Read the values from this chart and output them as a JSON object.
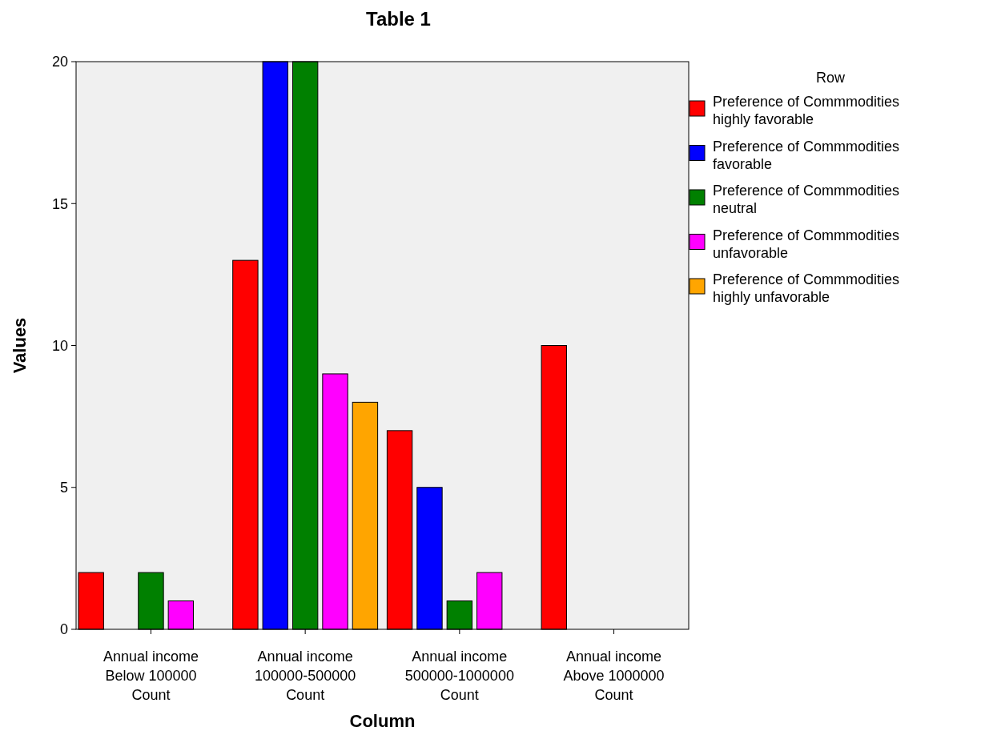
{
  "chart_data": {
    "type": "bar",
    "title": "Table 1",
    "xlabel": "Column",
    "ylabel": "Values",
    "legend_title": "Row",
    "legend": "right",
    "categories": [
      "Annual income\nBelow 100000\nCount",
      "Annual income\n100000-500000\nCount",
      "Annual income\n500000-1000000\nCount",
      "Annual income\nAbove 1000000\nCount"
    ],
    "series": [
      {
        "name": "Preference of Commmodities\nhighly favorable",
        "color": "#ff0000",
        "values": [
          2,
          13,
          7,
          10
        ]
      },
      {
        "name": "Preference of Commmodities\nfavorable",
        "color": "#0000ff",
        "values": [
          0,
          20,
          5,
          0
        ]
      },
      {
        "name": "Preference of Commmodities\nneutral",
        "color": "#008000",
        "values": [
          2,
          20,
          1,
          0
        ]
      },
      {
        "name": "Preference of Commmodities\nunfavorable",
        "color": "#ff00ff",
        "values": [
          1,
          9,
          2,
          0
        ]
      },
      {
        "name": "Preference of Commmodities\nhighly unfavorable",
        "color": "#ffa500",
        "values": [
          0,
          8,
          0,
          0
        ]
      }
    ],
    "ylim": [
      0,
      20
    ],
    "yticks": [
      0,
      5,
      10,
      15,
      20
    ],
    "grid": false
  }
}
